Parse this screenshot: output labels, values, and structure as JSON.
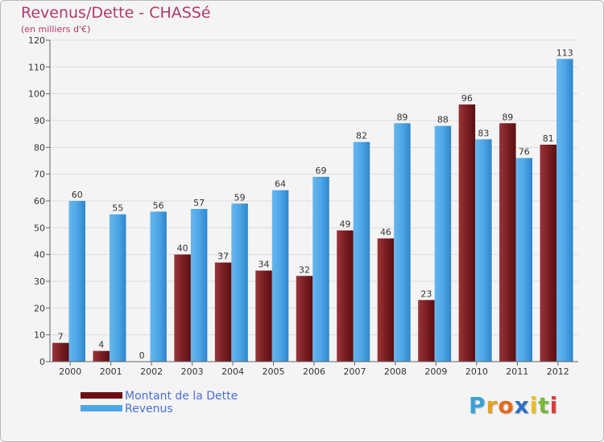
{
  "header": {
    "title": "Revenus/Dette - CHASSé",
    "subtitle": "(en milliers d'€)"
  },
  "chart_data": {
    "type": "bar",
    "categories": [
      "2000",
      "2001",
      "2002",
      "2003",
      "2004",
      "2005",
      "2006",
      "2007",
      "2008",
      "2009",
      "2010",
      "2011",
      "2012"
    ],
    "series": [
      {
        "name": "Montant de la Dette",
        "color": "#7a1f24",
        "values": [
          7,
          4,
          0,
          40,
          37,
          34,
          32,
          49,
          46,
          23,
          96,
          89,
          81
        ]
      },
      {
        "name": "Revenus",
        "color": "#4ea6e6",
        "values": [
          60,
          55,
          56,
          57,
          59,
          64,
          69,
          82,
          89,
          88,
          83,
          76,
          113
        ]
      }
    ],
    "yticks": [
      0,
      10,
      20,
      30,
      40,
      50,
      60,
      70,
      80,
      90,
      100,
      110,
      120
    ],
    "ylim": [
      0,
      120
    ],
    "grid": true,
    "legend_position": "bottom-left"
  },
  "legend": {
    "items": [
      {
        "label": "Montant de la Dette",
        "color": "#6e0f14"
      },
      {
        "label": "Revenus",
        "color": "#4ea6e6"
      }
    ]
  },
  "logo": {
    "letters": [
      "P",
      "r",
      "o",
      "x",
      "i",
      "t",
      "i"
    ],
    "colors": [
      "#3aa0d8",
      "#e8a020",
      "#e26a1c",
      "#2d6fc4",
      "#e8c020",
      "#7ab83a",
      "#e03a3a"
    ]
  }
}
